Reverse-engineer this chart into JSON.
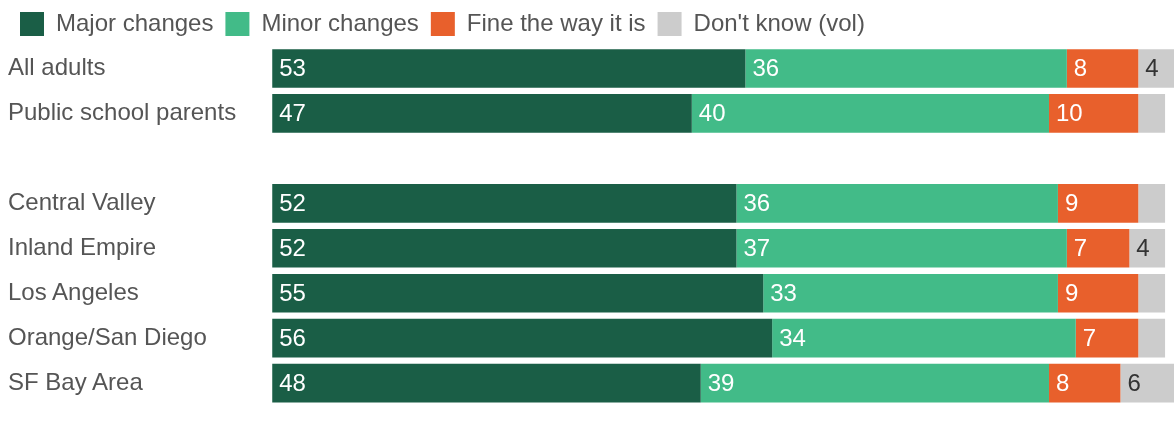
{
  "chart_data": {
    "type": "bar",
    "orientation": "horizontal",
    "stacked": true,
    "legend": "top left",
    "tick_labels": "y",
    "xlim": [
      0,
      101
    ],
    "categories": [
      "All adults",
      "Public school parents",
      null,
      "Central Valley",
      "Inland Empire",
      "Los Angeles",
      "Orange/San Diego",
      "SF Bay Area"
    ],
    "series": [
      {
        "name": "Major changes",
        "color": "#1a5e46",
        "values": [
          53,
          47,
          null,
          52,
          52,
          55,
          56,
          48
        ],
        "value_labels": [
          "53",
          "47",
          null,
          "52",
          "52",
          "55",
          "56",
          "48"
        ]
      },
      {
        "name": "Minor changes",
        "color": "#42bb88",
        "values": [
          36,
          40,
          null,
          36,
          37,
          33,
          34,
          39
        ],
        "value_labels": [
          "36",
          "40",
          null,
          "36",
          "37",
          "33",
          "34",
          "39"
        ]
      },
      {
        "name": "Fine the way it is",
        "color": "#e8602c",
        "values": [
          8,
          10,
          null,
          9,
          7,
          9,
          7,
          8
        ],
        "value_labels": [
          "8",
          "10",
          null,
          "9",
          "7",
          "9",
          "7",
          "8"
        ]
      },
      {
        "name": "Don't know (vol)",
        "color": "#cccccc",
        "values": [
          4,
          3,
          null,
          3,
          4,
          3,
          3,
          6
        ],
        "value_labels": [
          "4",
          null,
          null,
          null,
          "4",
          null,
          null,
          "6"
        ]
      }
    ]
  }
}
